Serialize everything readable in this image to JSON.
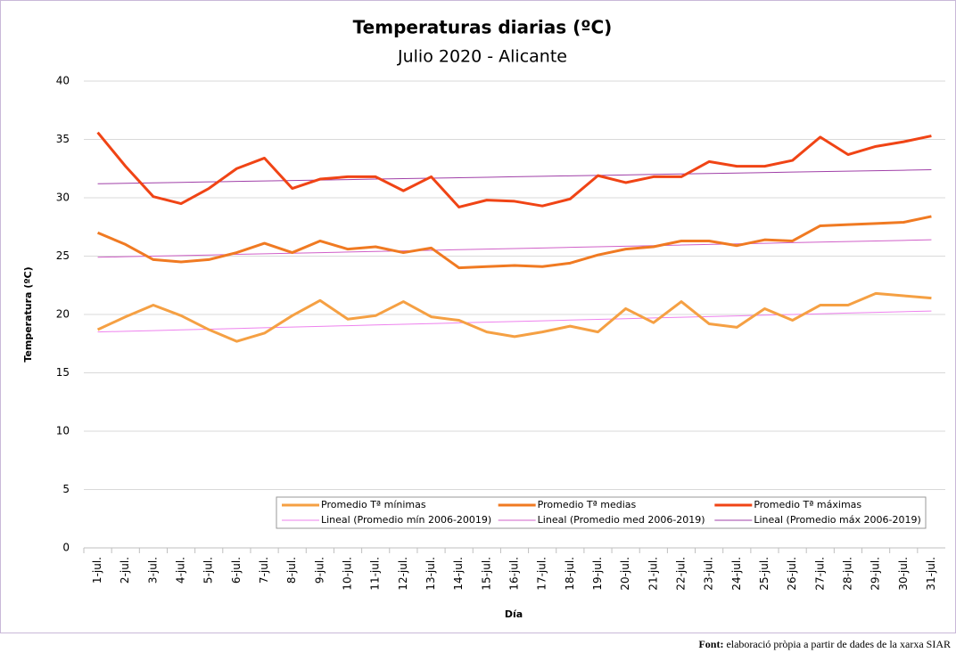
{
  "chart_data": {
    "type": "line",
    "title": "Temperaturas diarias (ºC)",
    "subtitle": "Julio 2020 - Alicante",
    "y_label": "Temperatura (ºC)",
    "x_label": "Día",
    "footer_label": "Font:",
    "footer_text": "elaboració pròpia a partir de dades de la xarxa SIAR",
    "categories": [
      "1-jul.",
      "2-jul.",
      "3-jul.",
      "4-jul.",
      "5-jul.",
      "6-jul.",
      "7-jul.",
      "8-jul.",
      "9-jul.",
      "10-jul.",
      "11-jul.",
      "12-jul.",
      "13-jul.",
      "14-jul.",
      "15-jul.",
      "16-jul.",
      "17-jul.",
      "18-jul.",
      "19-jul.",
      "20-jul.",
      "21-jul.",
      "22-jul.",
      "23-jul.",
      "24-jul.",
      "25-jul.",
      "26-jul.",
      "27-jul.",
      "28-jul.",
      "29-jul.",
      "30-jul.",
      "31-jul."
    ],
    "series": [
      {
        "name": "Promedio Tª mínimas",
        "color": "#f5a043",
        "width": 3,
        "values": [
          18.7,
          19.8,
          20.8,
          19.9,
          18.7,
          17.7,
          18.4,
          19.9,
          21.2,
          19.6,
          19.9,
          21.1,
          19.8,
          19.5,
          18.5,
          18.1,
          18.5,
          19.0,
          18.5,
          20.5,
          19.3,
          21.1,
          19.2,
          18.9,
          20.5,
          19.5,
          20.8,
          20.8,
          21.8,
          21.6,
          21.4
        ]
      },
      {
        "name": "Promedio Tª medias",
        "color": "#f07a22",
        "width": 3,
        "values": [
          27.0,
          26.0,
          24.7,
          24.5,
          24.7,
          25.3,
          26.1,
          25.3,
          26.3,
          25.6,
          25.8,
          25.3,
          25.7,
          24.0,
          24.1,
          24.2,
          24.1,
          24.4,
          25.1,
          25.6,
          25.8,
          26.3,
          26.3,
          25.9,
          26.4,
          26.3,
          27.6,
          27.7,
          27.8,
          27.9,
          28.4
        ]
      },
      {
        "name": "Promedio Tª máximas",
        "color": "#f04415",
        "width": 3,
        "values": [
          35.6,
          32.7,
          30.1,
          29.5,
          30.8,
          32.5,
          33.4,
          30.8,
          31.6,
          31.8,
          31.8,
          30.6,
          31.8,
          29.2,
          29.8,
          29.7,
          29.3,
          29.9,
          31.9,
          31.3,
          31.8,
          31.8,
          33.1,
          32.7,
          32.7,
          33.2,
          35.2,
          33.7,
          34.4,
          34.8,
          35.3
        ]
      },
      {
        "name": "Lineal (Promedio mín 2006-20019)",
        "color": "#ee82ee",
        "width": 1,
        "values": [
          18.5,
          18.56,
          18.62,
          18.68,
          18.74,
          18.8,
          18.86,
          18.92,
          18.98,
          19.04,
          19.1,
          19.16,
          19.22,
          19.28,
          19.34,
          19.4,
          19.46,
          19.52,
          19.58,
          19.64,
          19.7,
          19.76,
          19.82,
          19.88,
          19.94,
          20.0,
          20.06,
          20.12,
          20.18,
          20.24,
          20.3
        ]
      },
      {
        "name": "Lineal (Promedio med 2006-2019)",
        "color": "#d060c8",
        "width": 1,
        "values": [
          24.9,
          24.95,
          25.0,
          25.05,
          25.1,
          25.15,
          25.2,
          25.25,
          25.3,
          25.35,
          25.4,
          25.45,
          25.5,
          25.55,
          25.6,
          25.65,
          25.7,
          25.75,
          25.8,
          25.85,
          25.9,
          25.95,
          26.0,
          26.05,
          26.1,
          26.15,
          26.2,
          26.25,
          26.3,
          26.35,
          26.4
        ]
      },
      {
        "name": "Lineal (Promedio máx 2006-2019)",
        "color": "#a040a8",
        "width": 1,
        "values": [
          31.2,
          31.24,
          31.28,
          31.32,
          31.36,
          31.4,
          31.44,
          31.48,
          31.52,
          31.56,
          31.6,
          31.64,
          31.68,
          31.72,
          31.76,
          31.8,
          31.84,
          31.88,
          31.92,
          31.96,
          32.0,
          32.04,
          32.08,
          32.12,
          32.16,
          32.2,
          32.24,
          32.28,
          32.32,
          32.36,
          32.4
        ]
      }
    ],
    "ylim": [
      0,
      40
    ],
    "yticks": [
      0,
      5,
      10,
      15,
      20,
      25,
      30,
      35,
      40
    ],
    "grid": true,
    "legend": "bottom"
  }
}
